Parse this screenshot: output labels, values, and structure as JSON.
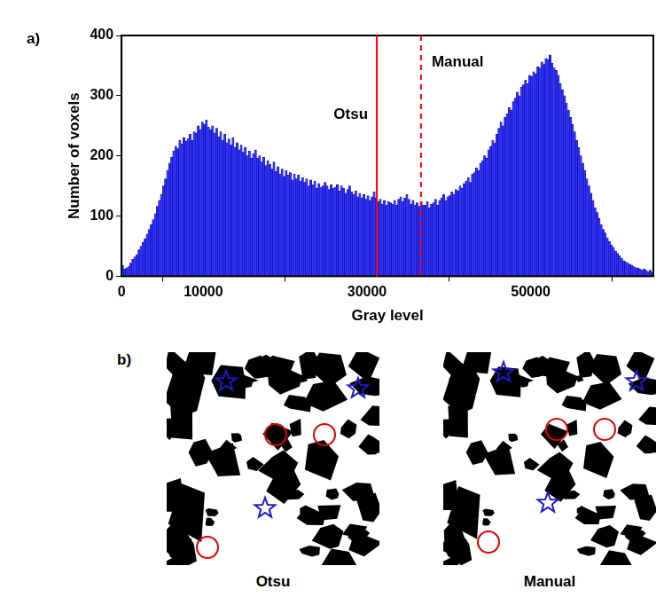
{
  "chart_data": {
    "type": "histogram",
    "panel_label": "a)",
    "x_label": "Gray level",
    "y_label": "Number of voxels",
    "color": "#3333ff",
    "grid": false,
    "xlim": [
      0,
      65000
    ],
    "xticks": [
      0,
      10000,
      30000,
      50000
    ],
    "ylim": [
      0,
      400
    ],
    "yticks": [
      0,
      100,
      200,
      300,
      400
    ],
    "annotations": [
      {
        "value": 31200,
        "label": "Otsu",
        "line_style": "solid",
        "color": "#ff0000"
      },
      {
        "value": 36600,
        "label": "Manual",
        "line_style": "dashed",
        "color": "#ff0000"
      }
    ],
    "bins": [
      0,
      250,
      500,
      750,
      1000,
      1250,
      1500,
      1750,
      2000,
      2250,
      2500,
      2750,
      3000,
      3250,
      3500,
      3750,
      4000,
      4250,
      4500,
      4750,
      5000,
      5250,
      5500,
      5750,
      6000,
      6250,
      6500,
      6750,
      7000,
      7250,
      7500,
      7750,
      8000,
      8250,
      8500,
      8750,
      9000,
      9250,
      9500,
      9750,
      10000,
      10250,
      10500,
      10750,
      11000,
      11250,
      11500,
      11750,
      12000,
      12250,
      12500,
      12750,
      13000,
      13250,
      13500,
      13750,
      14000,
      14250,
      14500,
      14750,
      15000,
      15250,
      15500,
      15750,
      16000,
      16250,
      16500,
      16750,
      17000,
      17250,
      17500,
      17750,
      18000,
      18250,
      18500,
      18750,
      19000,
      19250,
      19500,
      19750,
      20000,
      20250,
      20500,
      20750,
      21000,
      21250,
      21500,
      21750,
      22000,
      22250,
      22500,
      22750,
      23000,
      23250,
      23500,
      23750,
      24000,
      24250,
      24500,
      24750,
      25000,
      25250,
      25500,
      25750,
      26000,
      26250,
      26500,
      26750,
      27000,
      27250,
      27500,
      27750,
      28000,
      28250,
      28500,
      28750,
      29000,
      29250,
      29500,
      29750,
      30000,
      30250,
      30500,
      30750,
      31000,
      31250,
      31500,
      31750,
      32000,
      32250,
      32500,
      32750,
      33000,
      33250,
      33500,
      33750,
      34000,
      34250,
      34500,
      34750,
      35000,
      35250,
      35500,
      35750,
      36000,
      36250,
      36500,
      36750,
      37000,
      37250,
      37500,
      37750,
      38000,
      38250,
      38500,
      38750,
      39000,
      39250,
      39500,
      39750,
      40000,
      40250,
      40500,
      40750,
      41000,
      41250,
      41500,
      41750,
      42000,
      42250,
      42500,
      42750,
      43000,
      43250,
      43500,
      43750,
      44000,
      44250,
      44500,
      44750,
      45000,
      45250,
      45500,
      45750,
      46000,
      46250,
      46500,
      46750,
      47000,
      47250,
      47500,
      47750,
      48000,
      48250,
      48500,
      48750,
      49000,
      49250,
      49500,
      49750,
      50000,
      50250,
      50500,
      50750,
      51000,
      51250,
      51500,
      51750,
      52000,
      52250,
      52500,
      52750,
      53000,
      53250,
      53500,
      53750,
      54000,
      54250,
      54500,
      54750,
      55000,
      55250,
      55500,
      55750,
      56000,
      56250,
      56500,
      56750,
      57000,
      57250,
      57500,
      57750,
      58000,
      58250,
      58500,
      58750,
      59000,
      59250,
      59500,
      59750,
      60000,
      60250,
      60500,
      60750,
      61000,
      61250,
      61500,
      61750,
      62000,
      62250,
      62500,
      62750,
      63000,
      63250,
      63500,
      63750,
      64000,
      64250,
      64500,
      64750,
      65000
    ],
    "values": [
      18,
      12,
      14,
      16,
      22,
      28,
      32,
      36,
      44,
      50,
      56,
      62,
      70,
      78,
      86,
      94,
      104,
      116,
      126,
      136,
      150,
      162,
      176,
      188,
      198,
      208,
      216,
      212,
      226,
      220,
      230,
      224,
      228,
      236,
      226,
      240,
      238,
      250,
      244,
      256,
      252,
      260,
      248,
      244,
      250,
      238,
      246,
      232,
      240,
      226,
      236,
      222,
      228,
      218,
      230,
      214,
      222,
      210,
      218,
      206,
      214,
      200,
      208,
      196,
      204,
      210,
      196,
      200,
      190,
      198,
      184,
      192,
      186,
      178,
      190,
      174,
      182,
      170,
      178,
      166,
      176,
      168,
      172,
      160,
      170,
      162,
      168,
      158,
      164,
      156,
      162,
      150,
      160,
      152,
      158,
      146,
      154,
      148,
      150,
      156,
      150,
      144,
      152,
      146,
      148,
      152,
      142,
      150,
      146,
      138,
      144,
      150,
      140,
      136,
      142,
      132,
      138,
      130,
      136,
      128,
      134,
      126,
      132,
      140,
      130,
      124,
      128,
      120,
      126,
      118,
      124,
      122,
      120,
      126,
      118,
      128,
      132,
      124,
      130,
      136,
      128,
      120,
      126,
      118,
      122,
      116,
      124,
      118,
      118,
      124,
      114,
      120,
      122,
      128,
      118,
      126,
      130,
      136,
      126,
      132,
      134,
      140,
      136,
      144,
      142,
      150,
      146,
      154,
      158,
      164,
      156,
      170,
      172,
      180,
      176,
      188,
      192,
      200,
      196,
      210,
      216,
      226,
      222,
      236,
      246,
      256,
      250,
      264,
      270,
      280,
      276,
      290,
      296,
      306,
      300,
      314,
      318,
      326,
      320,
      334,
      332,
      340,
      336,
      348,
      346,
      356,
      352,
      362,
      360,
      368,
      354,
      346,
      342,
      334,
      320,
      310,
      300,
      288,
      276,
      264,
      252,
      240,
      226,
      214,
      200,
      188,
      176,
      162,
      150,
      138,
      126,
      114,
      106,
      96,
      86,
      78,
      72,
      64,
      58,
      52,
      48,
      42,
      38,
      34,
      30,
      26,
      24,
      22,
      20,
      18,
      16,
      14,
      14,
      12,
      10,
      12,
      10,
      8,
      10,
      6
    ]
  },
  "panel_b": {
    "label": "b)",
    "images": [
      {
        "caption": "Otsu"
      },
      {
        "caption": "Manual"
      }
    ]
  }
}
